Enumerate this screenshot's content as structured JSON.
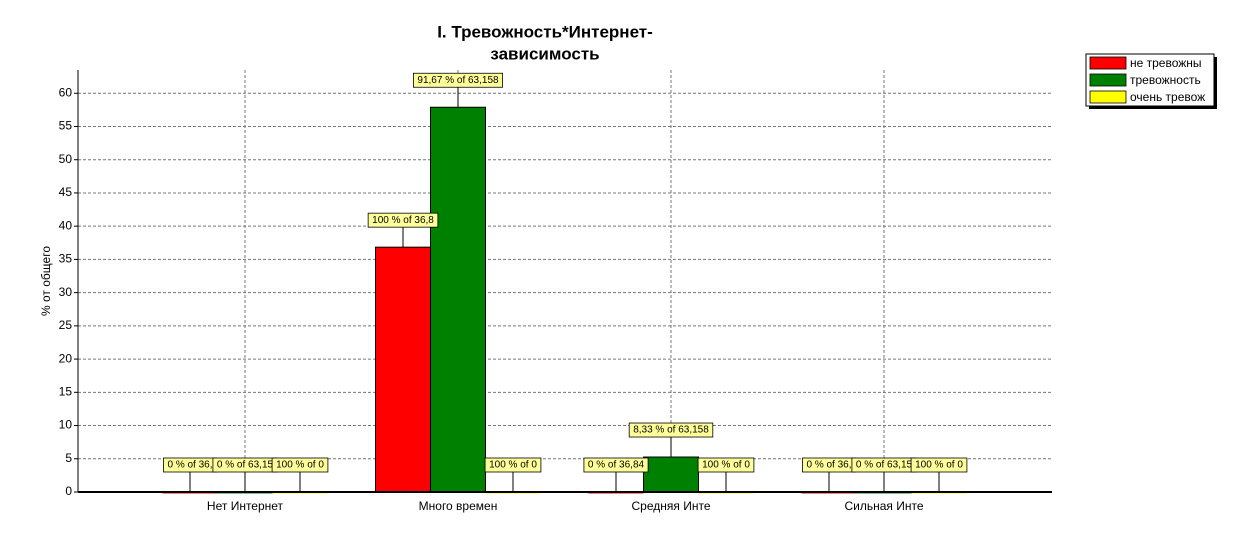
{
  "chart_data": {
    "type": "bar",
    "title": [
      "I. Тревожность*Интернет-",
      "зависимость"
    ],
    "y_label": "% от общего",
    "categories": [
      "Нет Интернет",
      "Много времен",
      "Средняя Инте",
      "Сильная Инте"
    ],
    "series": [
      {
        "name": "не тревожны",
        "color": "#ff0000",
        "values": [
          0,
          36.842,
          0,
          0
        ],
        "value_labels": [
          "0 % of 36,",
          "100 % of 36,8",
          "0 % of 36,84",
          "0 % of 36,"
        ]
      },
      {
        "name": "тревожность",
        "color": "#008000",
        "values": [
          0,
          57.895,
          5.263,
          0
        ],
        "value_labels": [
          "0 % of 63,15",
          "91,67 % of 63,158",
          "8,33 % of 63,158",
          "0 % of 63,15"
        ]
      },
      {
        "name": "очень тревож",
        "color": "#ffff00",
        "values": [
          0,
          0,
          0,
          0
        ],
        "value_labels": [
          "100 % of 0",
          "100 % of 0",
          "100 % of 0",
          "100 % of 0"
        ]
      }
    ],
    "ylim": [
      0,
      63.5
    ],
    "yticks": [
      0,
      5,
      10,
      15,
      20,
      25,
      30,
      35,
      40,
      45,
      50,
      55,
      60
    ],
    "grid": true,
    "legend": "top-right"
  }
}
